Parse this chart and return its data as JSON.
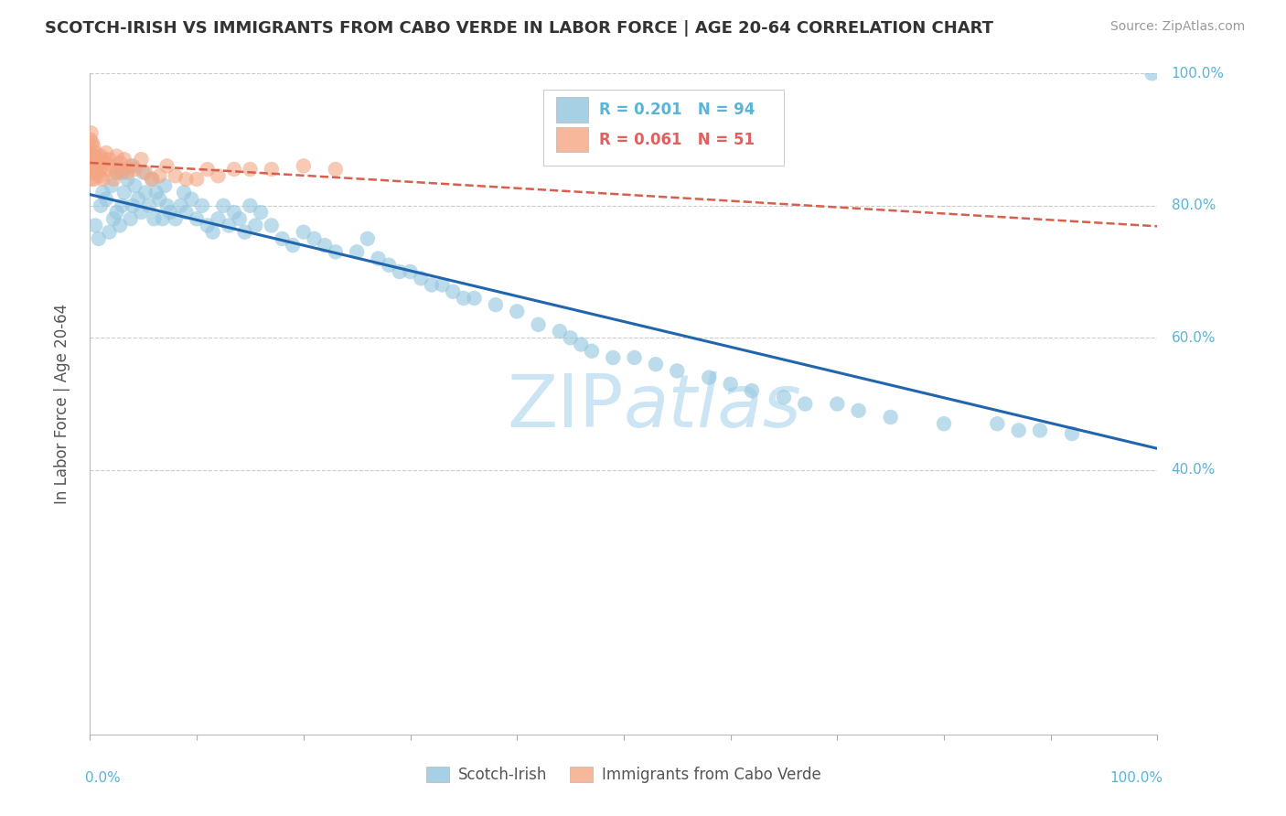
{
  "title": "SCOTCH-IRISH VS IMMIGRANTS FROM CABO VERDE IN LABOR FORCE | AGE 20-64 CORRELATION CHART",
  "source": "Source: ZipAtlas.com",
  "ylabel": "In Labor Force | Age 20-64",
  "legend1_label": "Scotch-Irish",
  "legend2_label": "Immigrants from Cabo Verde",
  "r1": 0.201,
  "n1": 94,
  "r2": 0.061,
  "n2": 51,
  "blue_color": "#92c5de",
  "pink_color": "#f4a582",
  "blue_line_color": "#2166ac",
  "pink_line_color": "#d6604d",
  "title_color": "#333333",
  "grid_color": "#cccccc",
  "watermark_color": "#cce5f5",
  "axis_tick_color": "#5ab4d6",
  "blue_x": [
    0.005,
    0.008,
    0.01,
    0.012,
    0.015,
    0.018,
    0.02,
    0.022,
    0.025,
    0.025,
    0.028,
    0.03,
    0.03,
    0.032,
    0.035,
    0.038,
    0.04,
    0.04,
    0.042,
    0.045,
    0.048,
    0.05,
    0.052,
    0.055,
    0.058,
    0.06,
    0.062,
    0.065,
    0.068,
    0.07,
    0.072,
    0.075,
    0.08,
    0.085,
    0.088,
    0.09,
    0.095,
    0.1,
    0.105,
    0.11,
    0.115,
    0.12,
    0.125,
    0.13,
    0.135,
    0.14,
    0.145,
    0.15,
    0.155,
    0.16,
    0.17,
    0.18,
    0.19,
    0.2,
    0.21,
    0.22,
    0.23,
    0.25,
    0.26,
    0.27,
    0.28,
    0.29,
    0.3,
    0.31,
    0.32,
    0.33,
    0.34,
    0.35,
    0.36,
    0.38,
    0.4,
    0.42,
    0.44,
    0.45,
    0.46,
    0.47,
    0.49,
    0.51,
    0.53,
    0.55,
    0.58,
    0.6,
    0.62,
    0.65,
    0.67,
    0.7,
    0.72,
    0.75,
    0.8,
    0.85,
    0.87,
    0.89,
    0.92,
    0.995
  ],
  "blue_y": [
    0.77,
    0.75,
    0.8,
    0.82,
    0.81,
    0.76,
    0.83,
    0.78,
    0.85,
    0.79,
    0.77,
    0.8,
    0.85,
    0.82,
    0.84,
    0.78,
    0.86,
    0.8,
    0.83,
    0.81,
    0.79,
    0.85,
    0.82,
    0.8,
    0.84,
    0.78,
    0.82,
    0.81,
    0.78,
    0.83,
    0.8,
    0.79,
    0.78,
    0.8,
    0.82,
    0.79,
    0.81,
    0.78,
    0.8,
    0.77,
    0.76,
    0.78,
    0.8,
    0.77,
    0.79,
    0.78,
    0.76,
    0.8,
    0.77,
    0.79,
    0.77,
    0.75,
    0.74,
    0.76,
    0.75,
    0.74,
    0.73,
    0.73,
    0.75,
    0.72,
    0.71,
    0.7,
    0.7,
    0.69,
    0.68,
    0.68,
    0.67,
    0.66,
    0.66,
    0.65,
    0.64,
    0.62,
    0.61,
    0.6,
    0.59,
    0.58,
    0.57,
    0.57,
    0.56,
    0.55,
    0.54,
    0.53,
    0.52,
    0.51,
    0.5,
    0.5,
    0.49,
    0.48,
    0.47,
    0.47,
    0.46,
    0.46,
    0.455,
    1.0
  ],
  "pink_x": [
    0.0,
    0.0,
    0.0,
    0.001,
    0.001,
    0.001,
    0.002,
    0.002,
    0.003,
    0.003,
    0.004,
    0.004,
    0.005,
    0.005,
    0.006,
    0.007,
    0.008,
    0.009,
    0.01,
    0.01,
    0.012,
    0.012,
    0.014,
    0.015,
    0.016,
    0.018,
    0.02,
    0.022,
    0.025,
    0.025,
    0.028,
    0.03,
    0.032,
    0.035,
    0.038,
    0.042,
    0.048,
    0.052,
    0.058,
    0.065,
    0.072,
    0.08,
    0.09,
    0.1,
    0.11,
    0.12,
    0.135,
    0.15,
    0.17,
    0.2,
    0.23
  ],
  "pink_y": [
    0.9,
    0.88,
    0.86,
    0.91,
    0.87,
    0.84,
    0.895,
    0.865,
    0.89,
    0.85,
    0.875,
    0.84,
    0.88,
    0.855,
    0.87,
    0.85,
    0.865,
    0.845,
    0.875,
    0.855,
    0.87,
    0.84,
    0.865,
    0.88,
    0.855,
    0.87,
    0.86,
    0.84,
    0.875,
    0.85,
    0.865,
    0.855,
    0.87,
    0.85,
    0.86,
    0.855,
    0.87,
    0.85,
    0.84,
    0.845,
    0.86,
    0.845,
    0.84,
    0.84,
    0.855,
    0.845,
    0.855,
    0.855,
    0.855,
    0.86,
    0.855
  ]
}
